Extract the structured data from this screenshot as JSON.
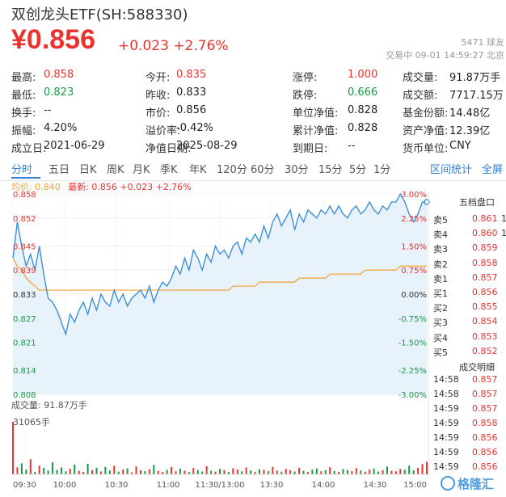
{
  "header": {
    "title": "双创龙头ETF(SH:588330)",
    "price": "¥0.856",
    "change": "+0.023 +2.76%",
    "meta_line1": "5471 球友",
    "meta_line2": "交易中 09-01 14:59:27 北京"
  },
  "stats": [
    [
      {
        "label": "最高:",
        "value": "0.858",
        "color": "red"
      },
      {
        "label": "今开:",
        "value": "0.835",
        "color": "red"
      },
      {
        "label": "涨停:",
        "value": "1.000",
        "color": "red"
      },
      {
        "label": "成交量:",
        "value": "91.87万手",
        "color": "dark"
      }
    ],
    [
      {
        "label": "最低:",
        "value": "0.823",
        "color": "green"
      },
      {
        "label": "昨收:",
        "value": "0.833",
        "color": "dark"
      },
      {
        "label": "跌停:",
        "value": "0.666",
        "color": "green"
      },
      {
        "label": "成交额:",
        "value": "7717.15万",
        "color": "dark"
      }
    ],
    [
      {
        "label": "换手:",
        "value": "--",
        "color": "dark"
      },
      {
        "label": "市价:",
        "value": "0.856",
        "color": "dark"
      },
      {
        "label": "单位净值:",
        "value": "0.828",
        "color": "dark"
      },
      {
        "label": "基金份额:",
        "value": "14.48亿",
        "color": "dark"
      }
    ],
    [
      {
        "label": "振幅:",
        "value": "4.20%",
        "color": "dark"
      },
      {
        "label": "溢价率:",
        "value": "-0.42%",
        "color": "dark"
      },
      {
        "label": "累计净值:",
        "value": "0.828",
        "color": "dark"
      },
      {
        "label": "资产净值:",
        "value": "12.39亿",
        "color": "dark"
      }
    ],
    [
      {
        "label": "成立日:",
        "value": "2021-06-29",
        "color": "dark"
      },
      {
        "label": "净值日期:",
        "value": "2025-08-29",
        "color": "dark"
      },
      {
        "label": "到期日:",
        "value": "--",
        "color": "dark"
      },
      {
        "label": "货币单位:",
        "value": "CNY",
        "color": "dark"
      }
    ]
  ],
  "tabs": [
    "分时",
    "五日",
    "日K",
    "周K",
    "月K",
    "季K",
    "年K",
    "120分",
    "60分",
    "30分",
    "15分",
    "5分",
    "1分"
  ],
  "tab_links": {
    "stats": "区间统计",
    "fullscreen": "全屏"
  },
  "legend": {
    "avg": "均价: 0.840",
    "latest": "最新: 0.856 +0.023 +2.76%"
  },
  "volume": {
    "label": "成交量: 91.87万手",
    "max_label": "31065手"
  },
  "order_book": {
    "title": "五档盘口",
    "asks": [
      {
        "label": "卖5",
        "price": "0.861",
        "qty": "1"
      },
      {
        "label": "卖4",
        "price": "0.860",
        "qty": "1"
      },
      {
        "label": "卖3",
        "price": "0.859",
        "qty": ""
      },
      {
        "label": "卖2",
        "price": "0.858",
        "qty": ""
      },
      {
        "label": "卖1",
        "price": "0.857",
        "qty": ""
      }
    ],
    "bids": [
      {
        "label": "买1",
        "price": "0.856",
        "qty": ""
      },
      {
        "label": "买2",
        "price": "0.855",
        "qty": ""
      },
      {
        "label": "买3",
        "price": "0.854",
        "qty": ""
      },
      {
        "label": "买4",
        "price": "0.853",
        "qty": ""
      },
      {
        "label": "买5",
        "price": "0.852",
        "qty": ""
      }
    ]
  },
  "trades": {
    "title": "成交明细",
    "rows": [
      {
        "time": "14:58",
        "price": "0.857"
      },
      {
        "time": "14:58",
        "price": "0.857"
      },
      {
        "time": "14:59",
        "price": "0.857"
      },
      {
        "time": "14:59",
        "price": "0.858"
      },
      {
        "time": "14:59",
        "price": "0.856"
      },
      {
        "time": "14:59",
        "price": "0.856"
      },
      {
        "time": "14:59",
        "price": "0.856"
      }
    ]
  },
  "watermark": "格隆汇",
  "colors": {
    "red": "#e8342e",
    "green": "#159947",
    "blue": "#2f7fd6",
    "avg": "#f0a030",
    "price_line": "#3d8fd6",
    "fill": "#e8f2fb"
  },
  "chart_data": {
    "type": "line",
    "x_ticks": [
      "09:30",
      "10:00",
      "10:30",
      "11:00",
      "11:30/13:00",
      "13:30",
      "14:00",
      "14:30",
      "15:00"
    ],
    "y_ticks_left": [
      "0.858",
      "0.852",
      "0.845",
      "0.839",
      "0.833",
      "0.827",
      "0.821",
      "0.814",
      "0.808"
    ],
    "y_ticks_right": [
      "3.00%",
      "2.25%",
      "1.50%",
      "0.75%",
      "0.00%",
      "-0.75%",
      "-1.50%",
      "-2.25%",
      "-3.00%"
    ],
    "ylim": [
      0.808,
      0.858
    ],
    "prev_close": 0.833,
    "price_series": [
      0.842,
      0.851,
      0.845,
      0.84,
      0.843,
      0.839,
      0.845,
      0.838,
      0.832,
      0.831,
      0.829,
      0.826,
      0.823,
      0.828,
      0.826,
      0.829,
      0.831,
      0.828,
      0.832,
      0.829,
      0.833,
      0.831,
      0.83,
      0.834,
      0.831,
      0.833,
      0.83,
      0.832,
      0.833,
      0.834,
      0.832,
      0.835,
      0.831,
      0.834,
      0.836,
      0.835,
      0.837,
      0.84,
      0.838,
      0.842,
      0.839,
      0.844,
      0.842,
      0.839,
      0.843,
      0.841,
      0.845,
      0.843,
      0.844,
      0.842,
      0.845,
      0.846,
      0.843,
      0.847,
      0.846,
      0.848,
      0.846,
      0.85,
      0.847,
      0.851,
      0.853,
      0.85,
      0.852,
      0.854,
      0.849,
      0.853,
      0.851,
      0.854,
      0.853,
      0.852,
      0.854,
      0.853,
      0.855,
      0.853,
      0.855,
      0.853,
      0.852,
      0.854,
      0.855,
      0.853,
      0.854,
      0.856,
      0.854,
      0.853,
      0.855,
      0.854,
      0.856,
      0.856,
      0.858,
      0.856,
      0.853,
      0.851,
      0.853,
      0.856,
      0.856
    ],
    "avg_series": [
      0.842,
      0.84,
      0.839,
      0.837,
      0.836,
      0.835,
      0.834,
      0.834,
      0.834,
      0.834,
      0.834,
      0.834,
      0.834,
      0.834,
      0.834,
      0.834,
      0.834,
      0.834,
      0.834,
      0.834,
      0.834,
      0.834,
      0.834,
      0.834,
      0.834,
      0.834,
      0.834,
      0.834,
      0.834,
      0.834,
      0.834,
      0.834,
      0.834,
      0.834,
      0.834,
      0.834,
      0.834,
      0.834,
      0.834,
      0.834,
      0.834,
      0.834,
      0.834,
      0.834,
      0.834,
      0.834,
      0.834,
      0.834,
      0.834,
      0.834,
      0.835,
      0.835,
      0.835,
      0.835,
      0.835,
      0.835,
      0.836,
      0.836,
      0.836,
      0.836,
      0.836,
      0.836,
      0.836,
      0.836,
      0.836,
      0.837,
      0.837,
      0.837,
      0.837,
      0.837,
      0.837,
      0.837,
      0.838,
      0.838,
      0.838,
      0.838,
      0.838,
      0.838,
      0.838,
      0.838,
      0.839,
      0.839,
      0.839,
      0.839,
      0.839,
      0.839,
      0.839,
      0.839,
      0.84,
      0.84,
      0.84,
      0.84,
      0.84,
      0.84,
      0.84
    ],
    "volume_series": [
      31065,
      4200,
      6500,
      2800,
      9000,
      1500,
      5200,
      3800,
      2200,
      7100,
      2600,
      4100,
      1800,
      3300,
      5800,
      2100,
      1400,
      6200,
      2500,
      3900,
      1700,
      4400,
      2300,
      5100,
      1600,
      2800,
      3600,
      1200,
      4700,
      2400,
      1900,
      3100,
      5600,
      2000,
      1500,
      2700,
      4300,
      1800,
      3400,
      2200,
      1300,
      3800,
      2600,
      1700,
      4900,
      2100,
      1600,
      3200,
      2500,
      1400,
      3600,
      2900,
      1800,
      4100,
      2300,
      1500,
      3000,
      2700,
      1900,
      4400,
      2200,
      1600,
      3300,
      2500,
      1700,
      3900,
      2100,
      1400,
      2800,
      3500,
      1800,
      2400,
      4200,
      2000,
      1500,
      3100,
      2600,
      1900,
      3700,
      2300,
      1600,
      2900,
      3400,
      1700,
      2500,
      4600,
      2100,
      1800,
      3200,
      2700,
      5200,
      2400,
      3800,
      6100,
      7400
    ]
  }
}
